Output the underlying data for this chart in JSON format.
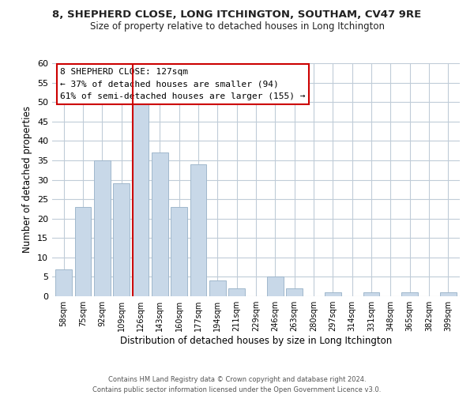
{
  "title": "8, SHEPHERD CLOSE, LONG ITCHINGTON, SOUTHAM, CV47 9RE",
  "subtitle": "Size of property relative to detached houses in Long Itchington",
  "xlabel": "Distribution of detached houses by size in Long Itchington",
  "ylabel": "Number of detached properties",
  "bar_labels": [
    "58sqm",
    "75sqm",
    "92sqm",
    "109sqm",
    "126sqm",
    "143sqm",
    "160sqm",
    "177sqm",
    "194sqm",
    "211sqm",
    "229sqm",
    "246sqm",
    "263sqm",
    "280sqm",
    "297sqm",
    "314sqm",
    "331sqm",
    "348sqm",
    "365sqm",
    "382sqm",
    "399sqm"
  ],
  "bar_values": [
    7,
    23,
    35,
    29,
    50,
    37,
    23,
    34,
    4,
    2,
    0,
    5,
    2,
    0,
    1,
    0,
    1,
    0,
    1,
    0,
    1
  ],
  "bar_color": "#c8d8e8",
  "bar_edge_color": "#a0b8cc",
  "highlight_index": 4,
  "highlight_line_color": "#cc0000",
  "ylim": [
    0,
    60
  ],
  "yticks": [
    0,
    5,
    10,
    15,
    20,
    25,
    30,
    35,
    40,
    45,
    50,
    55,
    60
  ],
  "annotation_title": "8 SHEPHERD CLOSE: 127sqm",
  "annotation_line1": "← 37% of detached houses are smaller (94)",
  "annotation_line2": "61% of semi-detached houses are larger (155) →",
  "annotation_box_color": "#ffffff",
  "annotation_box_edge_color": "#cc0000",
  "footer_line1": "Contains HM Land Registry data © Crown copyright and database right 2024.",
  "footer_line2": "Contains public sector information licensed under the Open Government Licence v3.0.",
  "background_color": "#ffffff",
  "grid_color": "#c0ccd8",
  "title_fontsize": 9.5,
  "subtitle_fontsize": 8.5
}
